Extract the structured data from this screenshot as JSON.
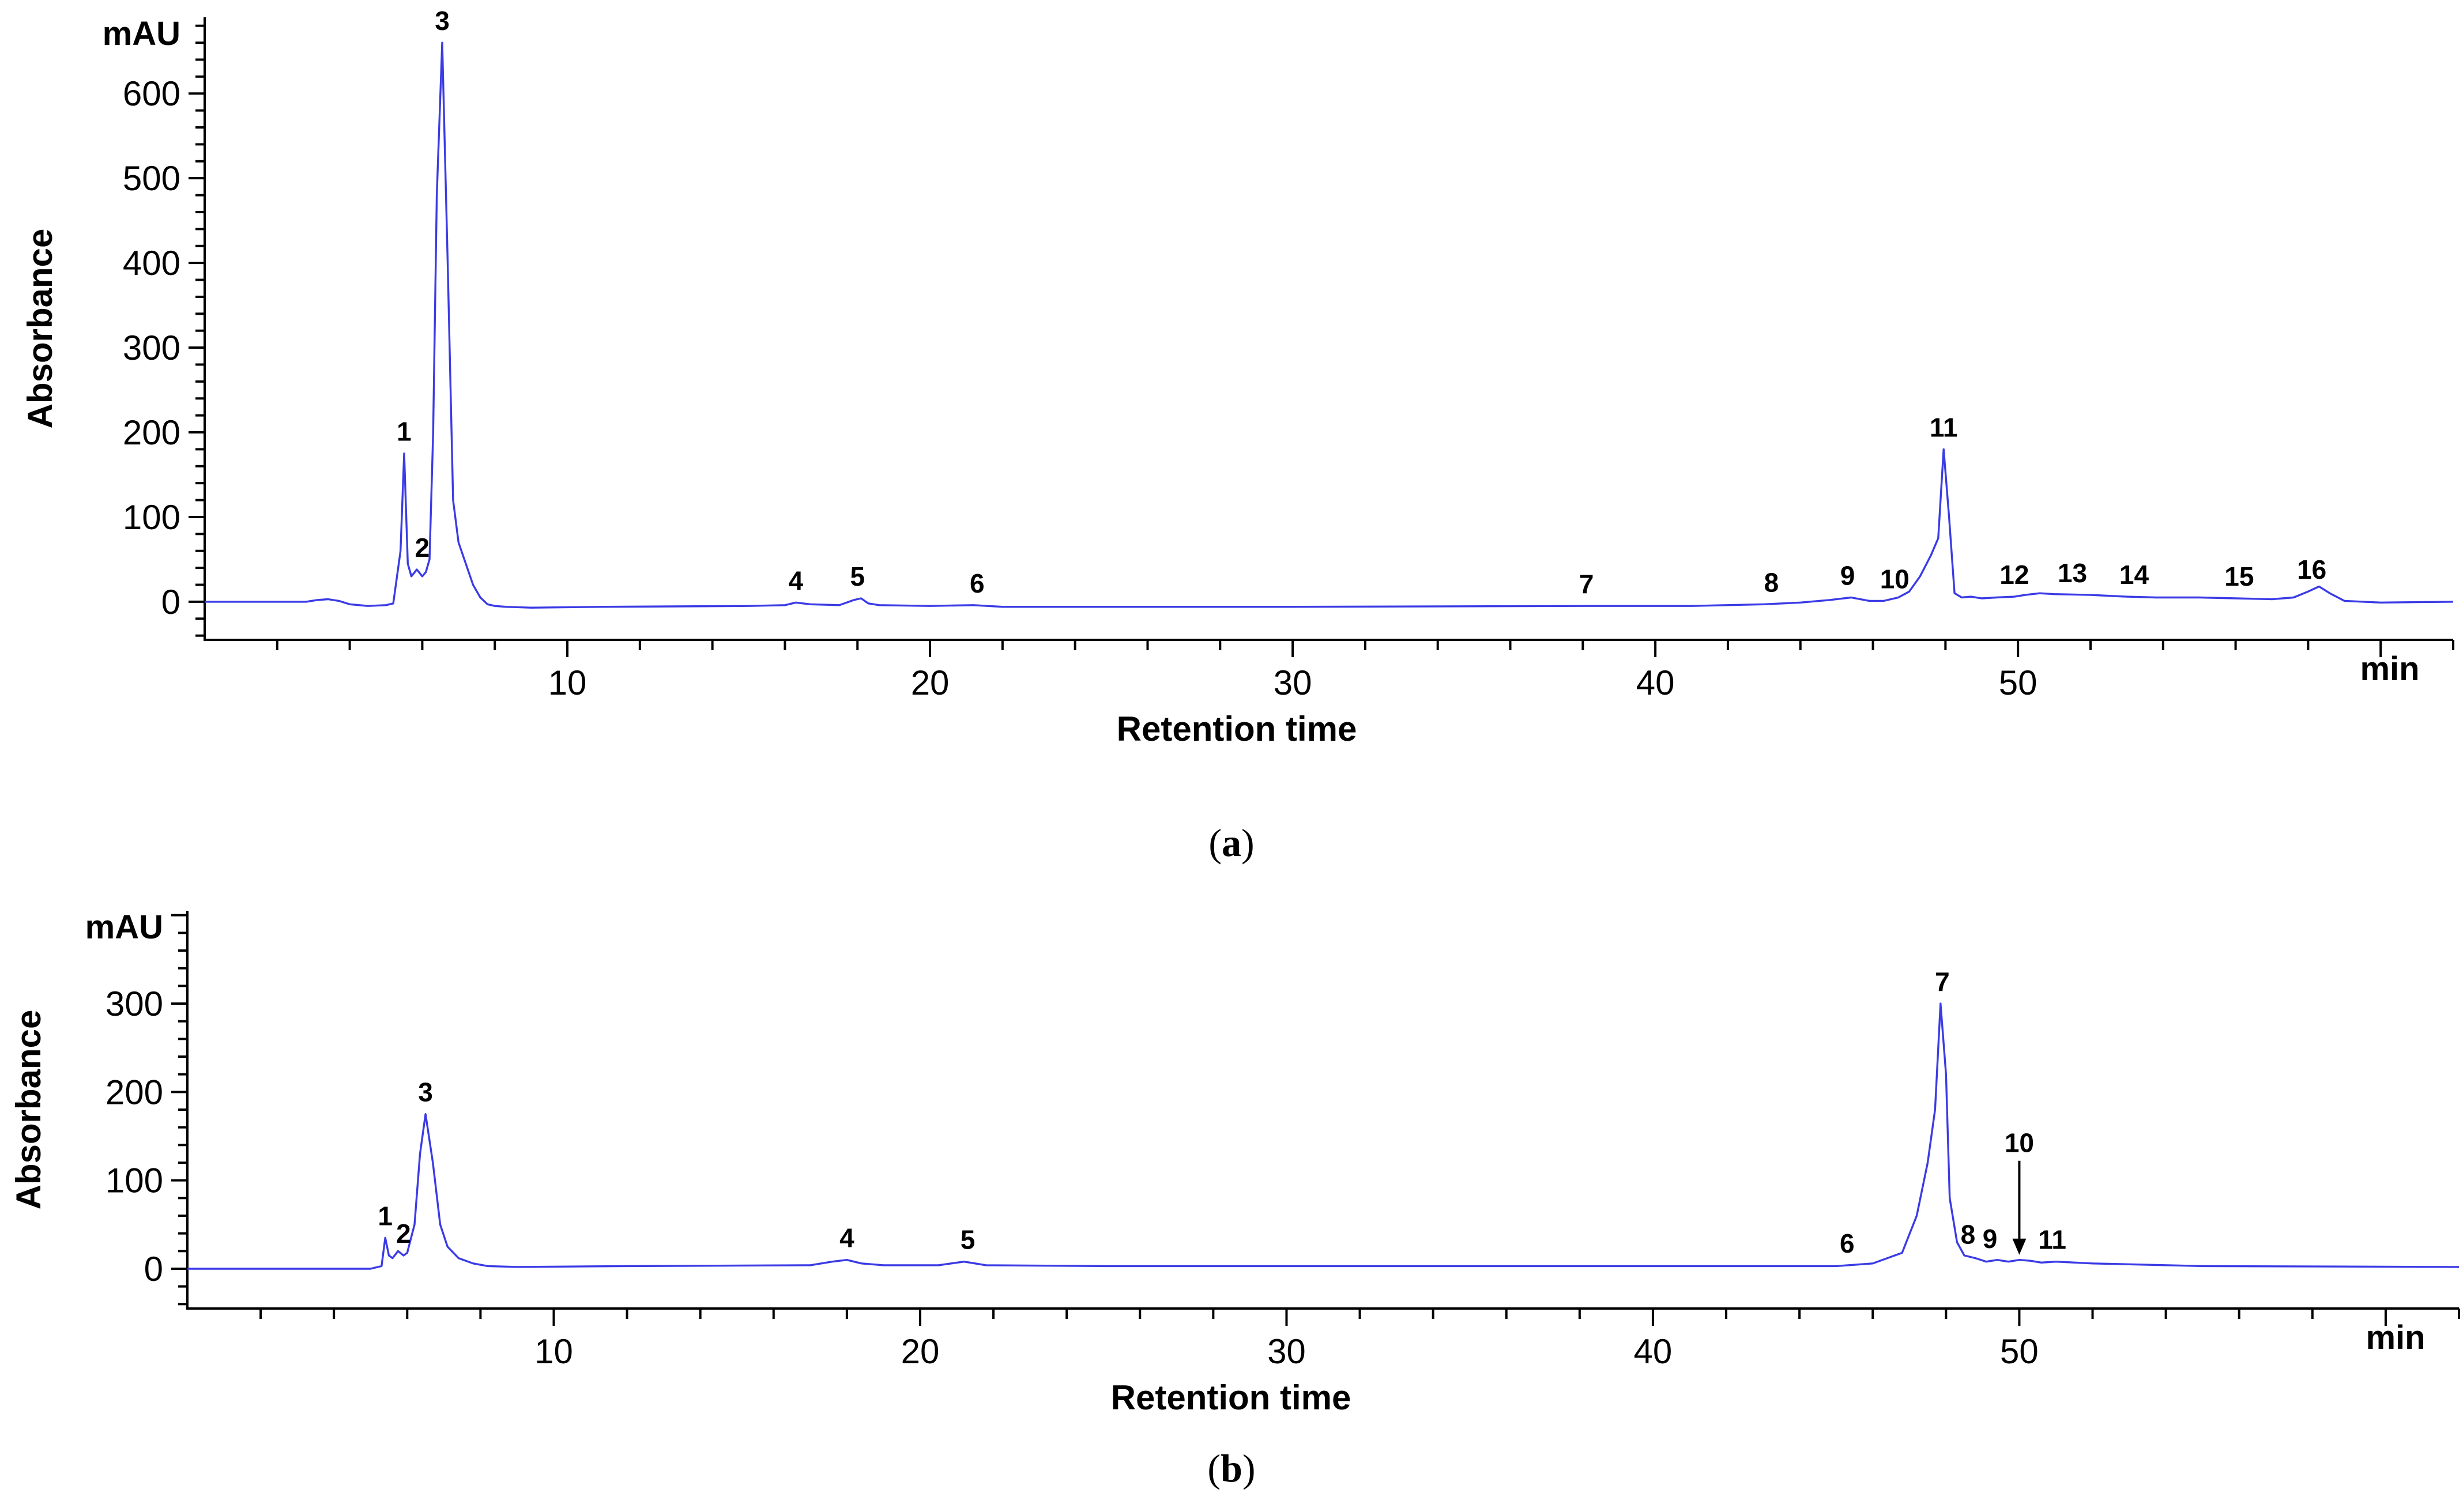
{
  "chart_data": [
    {
      "id": "a",
      "type": "line",
      "caption_letter": "a",
      "ylabel": "Absorbance",
      "xlabel": "Retention time",
      "y_unit": "mAU",
      "x_unit": "min",
      "xlim": [
        0,
        62
      ],
      "ylim": [
        -45,
        690
      ],
      "x_ticks": [
        10,
        20,
        30,
        40,
        50
      ],
      "y_ticks": [
        0,
        100,
        200,
        300,
        400,
        500,
        600
      ],
      "trace_color": "#3b3be6",
      "series": [
        {
          "x": [
            0.0,
            2.8,
            3.1,
            3.4,
            3.7,
            4.0,
            4.5,
            5.0,
            5.2,
            5.4,
            5.5,
            5.6,
            5.7,
            5.85,
            6.0,
            6.1,
            6.2,
            6.3,
            6.4,
            6.55,
            6.7,
            6.85,
            7.0,
            7.2,
            7.4,
            7.6,
            7.8,
            8.0,
            8.3,
            9.0,
            11.0,
            15.0,
            16.0,
            16.3,
            16.7,
            17.5,
            17.9,
            18.1,
            18.3,
            18.6,
            20.0,
            21.2,
            22.0,
            30.0,
            38.0,
            41.0,
            43.0,
            44.0,
            44.8,
            45.4,
            45.9,
            46.3,
            46.7,
            47.0,
            47.3,
            47.6,
            47.8,
            47.95,
            48.1,
            48.25,
            48.45,
            48.7,
            49.0,
            49.4,
            49.9,
            50.2,
            50.6,
            51.0,
            52.0,
            53.0,
            53.8,
            55.0,
            56.0,
            57.0,
            57.6,
            58.0,
            58.3,
            58.6,
            59.0,
            60.0,
            62.0
          ],
          "y": [
            0,
            0,
            2,
            3,
            1,
            -3,
            -5,
            -4,
            -2,
            60,
            175,
            45,
            30,
            38,
            30,
            35,
            50,
            200,
            480,
            660,
            400,
            120,
            70,
            45,
            20,
            5,
            -3,
            -5,
            -6,
            -7,
            -6,
            -5,
            -4,
            -1,
            -3,
            -4,
            2,
            4,
            -2,
            -4,
            -5,
            -4,
            -6,
            -6,
            -5,
            -5,
            -3,
            -1,
            2,
            5,
            1,
            1,
            5,
            12,
            30,
            55,
            75,
            180,
            100,
            10,
            5,
            6,
            4,
            5,
            6,
            8,
            10,
            9,
            8,
            6,
            5,
            5,
            4,
            3,
            5,
            12,
            18,
            10,
            1,
            -1,
            0
          ]
        }
      ],
      "peak_labels": [
        {
          "text": "1",
          "x": 5.5,
          "y": 175
        },
        {
          "text": "2",
          "x": 6.0,
          "y": 38
        },
        {
          "text": "3",
          "x": 6.55,
          "y": 660
        },
        {
          "text": "4",
          "x": 16.3,
          "y": -1
        },
        {
          "text": "5",
          "x": 18.0,
          "y": 4
        },
        {
          "text": "6",
          "x": 21.3,
          "y": -4
        },
        {
          "text": "7",
          "x": 38.1,
          "y": -5
        },
        {
          "text": "8",
          "x": 43.2,
          "y": -3
        },
        {
          "text": "9",
          "x": 45.3,
          "y": 5
        },
        {
          "text": "10",
          "x": 46.6,
          "y": 1
        },
        {
          "text": "11",
          "x": 47.95,
          "y": 180
        },
        {
          "text": "12",
          "x": 49.9,
          "y": 6
        },
        {
          "text": "13",
          "x": 51.5,
          "y": 8
        },
        {
          "text": "14",
          "x": 53.2,
          "y": 6
        },
        {
          "text": "15",
          "x": 56.1,
          "y": 4
        },
        {
          "text": "16",
          "x": 58.1,
          "y": 12
        }
      ]
    },
    {
      "id": "b",
      "type": "line",
      "caption_letter": "b",
      "ylabel": "Absorbance",
      "xlabel": "Retention time",
      "y_unit": "mAU",
      "x_unit": "min",
      "xlim": [
        0,
        62
      ],
      "ylim": [
        -45,
        405
      ],
      "x_ticks": [
        10,
        20,
        30,
        40,
        50
      ],
      "y_ticks": [
        0,
        100,
        200,
        300
      ],
      "trace_color": "#3b3be6",
      "series": [
        {
          "x": [
            0.0,
            5.0,
            5.3,
            5.4,
            5.5,
            5.6,
            5.75,
            5.9,
            6.0,
            6.2,
            6.35,
            6.5,
            6.7,
            6.9,
            7.1,
            7.4,
            7.8,
            8.2,
            9.0,
            12.0,
            17.0,
            17.6,
            18.0,
            18.4,
            19.0,
            20.5,
            21.2,
            21.8,
            25.0,
            30.0,
            40.0,
            45.0,
            46.0,
            46.8,
            47.2,
            47.5,
            47.7,
            47.85,
            48.0,
            48.1,
            48.3,
            48.5,
            48.8,
            49.1,
            49.4,
            49.7,
            50.0,
            50.3,
            50.6,
            51.0,
            52.0,
            53.0,
            55.0,
            62.0
          ],
          "y": [
            0,
            0,
            3,
            35,
            15,
            12,
            20,
            15,
            18,
            50,
            130,
            175,
            120,
            50,
            25,
            12,
            6,
            3,
            2,
            3,
            4,
            8,
            10,
            6,
            4,
            4,
            8,
            4,
            3,
            3,
            3,
            3,
            6,
            18,
            60,
            120,
            180,
            300,
            220,
            80,
            30,
            15,
            12,
            8,
            10,
            8,
            10,
            9,
            7,
            8,
            6,
            5,
            3,
            2
          ]
        }
      ],
      "peak_labels": [
        {
          "text": "1",
          "x": 5.4,
          "y": 35
        },
        {
          "text": "2",
          "x": 5.9,
          "y": 15
        },
        {
          "text": "3",
          "x": 6.5,
          "y": 175
        },
        {
          "text": "4",
          "x": 18.0,
          "y": 10
        },
        {
          "text": "5",
          "x": 21.3,
          "y": 8
        },
        {
          "text": "6",
          "x": 45.3,
          "y": 4
        },
        {
          "text": "7",
          "x": 47.9,
          "y": 300
        },
        {
          "text": "8",
          "x": 48.6,
          "y": 14
        },
        {
          "text": "9",
          "x": 49.2,
          "y": 9
        },
        {
          "text": "10",
          "x": 50.0,
          "y": 8
        },
        {
          "text": "11",
          "x": 50.9,
          "y": 8
        }
      ]
    }
  ]
}
